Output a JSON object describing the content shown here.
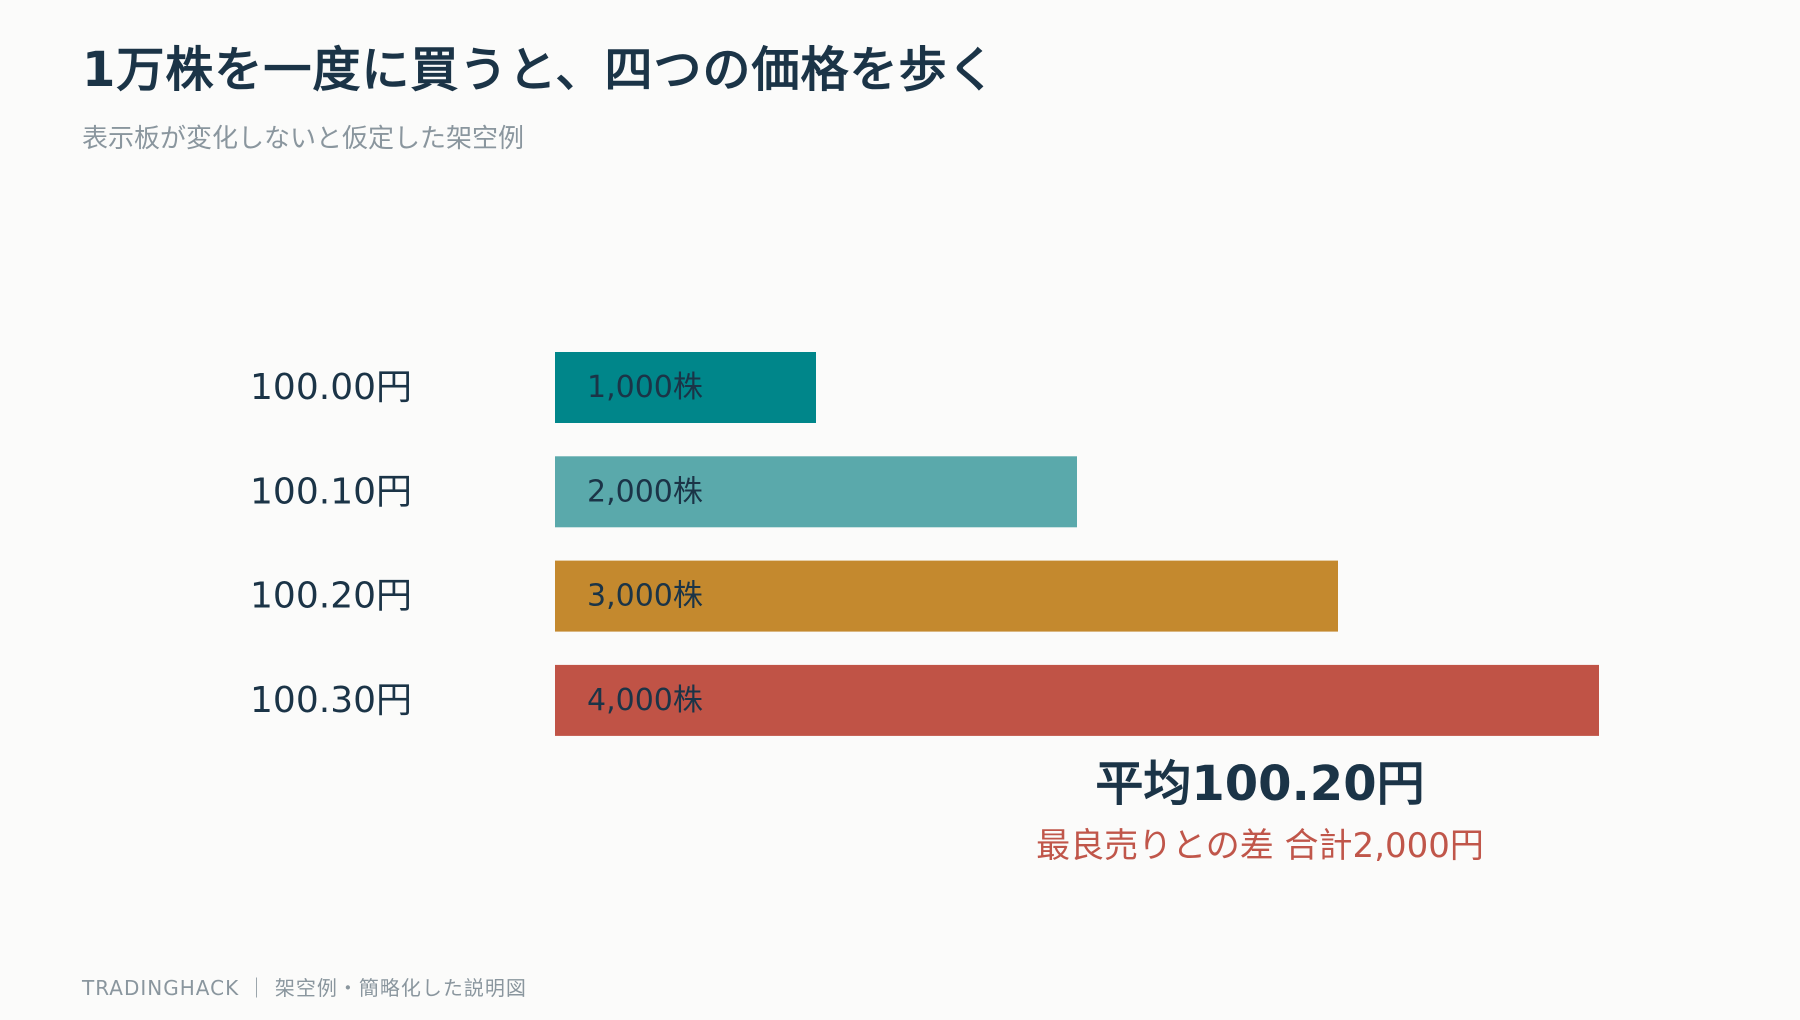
{
  "title": "1万株を一度に買うと、四つの価格を歩く",
  "subtitle": "表示板が変化しないと仮定した架空例",
  "chart_data": {
    "type": "bar",
    "orientation": "horizontal",
    "categories": [
      "100.00円",
      "100.10円",
      "100.20円",
      "100.30円"
    ],
    "values": [
      1000,
      2000,
      3000,
      4000
    ],
    "value_labels": [
      "1,000株",
      "2,000株",
      "3,000株",
      "4,000株"
    ],
    "colors": [
      "#00868a",
      "#5aa9ab",
      "#c4892e",
      "#c05346"
    ],
    "xlim": [
      0,
      4000
    ],
    "grid": false,
    "annotations": {
      "average": "平均100.20円",
      "difference": "最良売りとの差 合計2,000円"
    }
  },
  "footer": "TRADINGHACK ｜ 架空例・簡略化した説明図"
}
